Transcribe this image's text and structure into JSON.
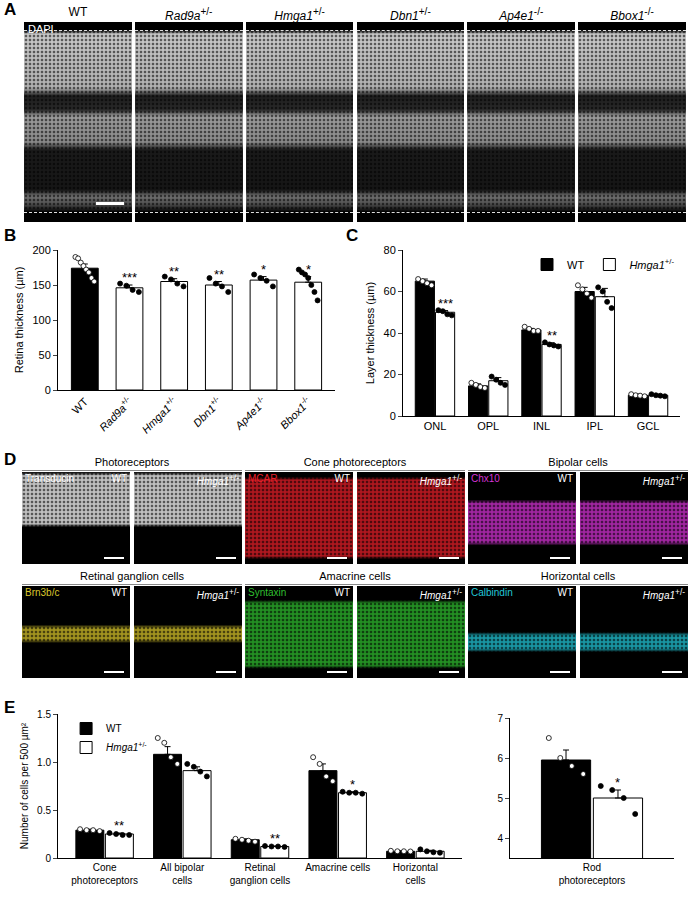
{
  "panel_labels": [
    "A",
    "B",
    "C",
    "D",
    "E"
  ],
  "image_panels": {
    "A": {
      "stain": "DAPI",
      "genotypes": [
        "WT",
        "Rad9a+/-",
        "Hmga1+/-",
        "Dbn1+/-",
        "Ap4e1-/-",
        "Bbox1-/-"
      ]
    },
    "D": {
      "genotypes": [
        "WT",
        "Hmga1+/-"
      ],
      "groups": [
        {
          "title": "Photoreceptors",
          "stain": "Transducin",
          "color": "#ffffff"
        },
        {
          "title": "Cone photoreceptors",
          "stain": "MCAR",
          "color": "#e8202a"
        },
        {
          "title": "Bipolar cells",
          "stain": "Chx10",
          "color": "#d633d6"
        },
        {
          "title": "Retinal ganglion cells",
          "stain": "Brn3b/c",
          "color": "#d9c62b"
        },
        {
          "title": "Amacrine cells",
          "stain": "Syntaxin",
          "color": "#2fbf2f"
        },
        {
          "title": "Horizontal cells",
          "stain": "Calbindin",
          "color": "#22c8d8"
        }
      ]
    }
  },
  "chart_data": [
    {
      "type": "bar",
      "ylabel": "Retina thickness (µm)",
      "categories": [
        "WT",
        "Rad9a+/-",
        "Hmga1+/-",
        "Dbn1+/-",
        "Ap4e1-/-",
        "Bbox1-/-"
      ],
      "values": [
        174,
        146,
        155,
        150,
        157,
        154
      ],
      "errors": [
        6,
        4,
        4,
        5,
        5,
        8
      ],
      "points": [
        [
          190,
          188,
          182,
          177,
          172,
          168,
          160,
          155
        ],
        [
          152,
          149,
          143,
          140
        ],
        [
          162,
          158,
          152,
          148
        ],
        [
          160,
          152,
          148,
          140
        ],
        [
          165,
          160,
          156,
          148
        ],
        [
          172,
          168,
          165,
          160,
          150,
          140,
          128
        ]
      ],
      "significance": [
        null,
        "***",
        "**",
        "**",
        "*",
        "*"
      ],
      "colors": [
        "#000000",
        "#ffffff",
        "#ffffff",
        "#ffffff",
        "#ffffff",
        "#ffffff"
      ],
      "ylim": [
        0,
        200
      ],
      "yticks": [
        0,
        50,
        100,
        150,
        200
      ]
    },
    {
      "type": "bar",
      "ylabel": "Layer thickness (µm)",
      "categories": [
        "ONL",
        "OPL",
        "INL",
        "IPL",
        "GCL"
      ],
      "legend": "top right",
      "series": [
        {
          "name": "WT",
          "color": "#000000",
          "values": [
            65,
            14.5,
            41.5,
            60,
            10
          ],
          "errors": [
            1,
            1,
            0.7,
            2,
            0.5
          ],
          "points": [
            [
              66,
              65,
              64,
              63
            ],
            [
              16,
              15,
              14,
              13.5
            ],
            [
              43,
              42,
              41,
              41
            ],
            [
              63,
              61,
              59,
              57
            ],
            [
              10.5,
              10,
              9.8,
              9.5
            ]
          ],
          "significance": [
            null,
            null,
            null,
            null,
            null
          ]
        },
        {
          "name": "Hmga1+/-",
          "color": "#ffffff",
          "values": [
            50,
            17,
            34.5,
            57.5,
            10
          ],
          "errors": [
            0.8,
            1.5,
            0.8,
            4,
            0.5
          ],
          "points": [
            [
              51,
              50.5,
              49,
              48.5
            ],
            [
              19,
              17.5,
              16,
              15
            ],
            [
              35.5,
              34.5,
              34,
              33.5
            ],
            [
              62,
              60,
              55,
              52
            ],
            [
              10.5,
              10,
              9.8,
              9.5
            ]
          ],
          "significance": [
            "***",
            null,
            "**",
            null,
            null
          ]
        }
      ],
      "ylim": [
        0,
        80
      ],
      "yticks": [
        0,
        20,
        40,
        60,
        80
      ]
    },
    {
      "type": "bar",
      "ylabel": "Number of cells per 500 µm²",
      "categories": [
        "Cone photoreceptors",
        "All bipolar cells",
        "Retinal ganglion cells",
        "Amacrine cells",
        "Horizontal cells"
      ],
      "legend": "top left",
      "series": [
        {
          "name": "WT",
          "color": "#000000",
          "values": [
            0.29,
            1.08,
            0.19,
            0.91,
            0.07
          ],
          "errors": [
            0.01,
            0.08,
            0.01,
            0.07,
            0.005
          ],
          "points": [
            [
              0.3,
              0.29,
              0.29,
              0.28
            ],
            [
              1.25,
              1.2,
              1.05,
              0.98
            ],
            [
              0.2,
              0.19,
              0.18,
              0.17
            ],
            [
              1.05,
              0.98,
              0.85,
              0.8
            ],
            [
              0.075,
              0.07,
              0.07,
              0.068
            ]
          ],
          "significance": [
            null,
            null,
            null,
            null,
            null
          ]
        },
        {
          "name": "Hmga1+/-",
          "color": "#ffffff",
          "values": [
            0.25,
            0.91,
            0.12,
            0.68,
            0.07
          ],
          "errors": [
            0.01,
            0.04,
            0.005,
            0.01,
            0.01
          ],
          "points": [
            [
              0.26,
              0.25,
              0.24,
              0.24
            ],
            [
              0.98,
              0.95,
              0.9,
              0.85
            ],
            [
              0.125,
              0.12,
              0.12,
              0.115
            ],
            [
              0.69,
              0.68,
              0.68,
              0.67
            ],
            [
              0.09,
              0.07,
              0.06,
              0.055
            ]
          ],
          "significance": [
            "**",
            null,
            "**",
            "*",
            null
          ]
        }
      ],
      "ylim": [
        0,
        1.5
      ],
      "yticks": [
        0,
        0.5,
        {
          "value": 1,
          "label": "1.0"
        },
        1.5
      ]
    },
    {
      "type": "bar",
      "categories": [
        "Rod photoreceptors"
      ],
      "series": [
        {
          "color": "#000000",
          "values": [
            5.95
          ],
          "errors": [
            0.25
          ],
          "points": [
            [
              6.5,
              6.0,
              5.8,
              5.6
            ]
          ],
          "significance": [
            null
          ]
        },
        {
          "color": "#ffffff",
          "values": [
            5.0
          ],
          "errors": [
            0.2
          ],
          "points": [
            [
              5.3,
              5.2,
              5.0,
              4.6
            ]
          ],
          "significance": [
            "*"
          ]
        }
      ],
      "ylim": [
        3.5,
        7
      ],
      "yticks": [
        4,
        5,
        6,
        7
      ]
    }
  ]
}
